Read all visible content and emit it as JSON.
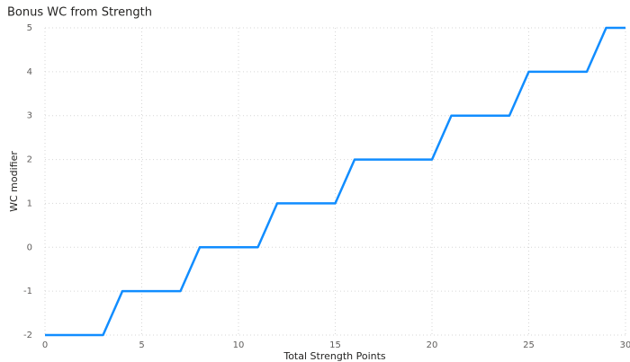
{
  "chart_data": {
    "type": "line",
    "title": "Bonus WC from Strength",
    "x_label": "Total Strength Points",
    "y_label": "WC modifier",
    "x": [
      0,
      1,
      2,
      3,
      4,
      5,
      6,
      7,
      8,
      9,
      10,
      11,
      12,
      13,
      14,
      15,
      16,
      17,
      18,
      19,
      20,
      21,
      22,
      23,
      24,
      25,
      26,
      27,
      28,
      29,
      30
    ],
    "series": [
      {
        "name": "WC modifier",
        "color": "#118dff",
        "values": [
          -2,
          -2,
          -2,
          -2,
          -1,
          -1,
          -1,
          -1,
          0,
          0,
          0,
          0,
          1,
          1,
          1,
          1,
          2,
          2,
          2,
          2,
          2,
          3,
          3,
          3,
          3,
          4,
          4,
          4,
          4,
          5,
          5
        ]
      }
    ],
    "xlim": [
      0,
      30
    ],
    "xticks": [
      0,
      5,
      10,
      15,
      20,
      25,
      30
    ],
    "ylim": [
      -2,
      5
    ],
    "yticks": [
      -2,
      -1,
      0,
      1,
      2,
      3,
      4,
      5
    ],
    "grid": true
  }
}
